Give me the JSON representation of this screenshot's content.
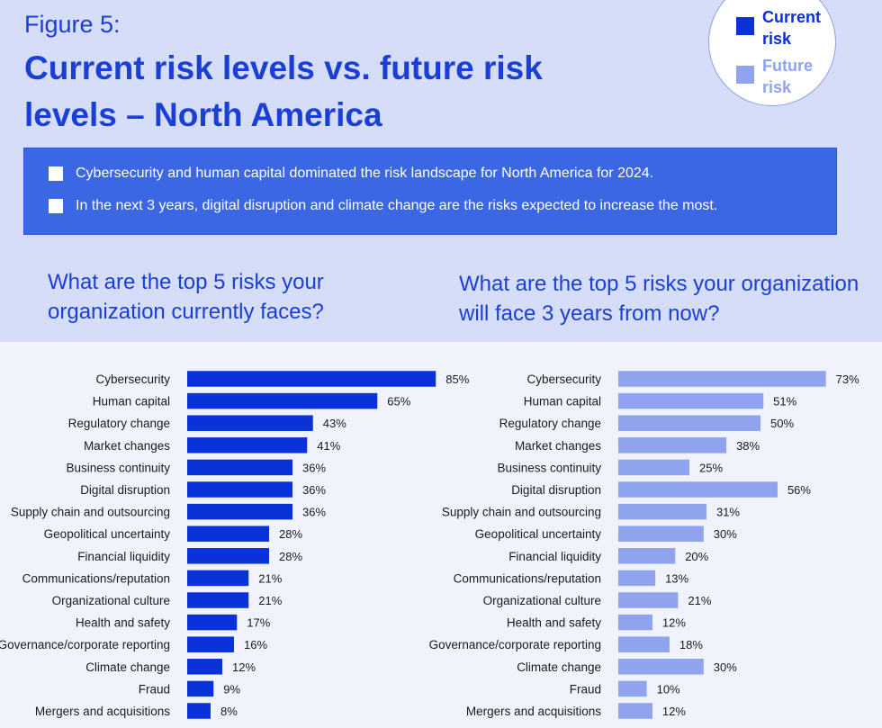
{
  "figure_label": "Figure 5:",
  "title": "Current risk levels vs. future risk levels – North America",
  "legend": {
    "current": "Current risk",
    "future": "Future risk"
  },
  "colors": {
    "current": "#0a32d9",
    "future": "#8fa3ee",
    "callout": "#3b67e4",
    "heading": "#1a3fd6"
  },
  "highlights": [
    "Cybersecurity and human capital dominated the risk landscape for North America for 2024.",
    "In the next 3 years, digital disruption and climate change are the risks expected to increase the most."
  ],
  "questions": {
    "current": "What are the top 5 risks your organization currently faces?",
    "future": "What are the top 5 risks your organization will face 3 years from now?"
  },
  "chart_data": [
    {
      "type": "bar",
      "orientation": "horizontal",
      "series": [
        {
          "name": "Current risk",
          "values": [
            85,
            65,
            43,
            41,
            36,
            36,
            36,
            28,
            28,
            21,
            21,
            17,
            16,
            12,
            9,
            8
          ]
        }
      ],
      "categories": [
        "Cybersecurity",
        "Human capital",
        "Regulatory change",
        "Market changes",
        "Business continuity",
        "Digital disruption",
        "Supply chain and outsourcing",
        "Geopolitical uncertainty",
        "Financial liquidity",
        "Communications/reputation",
        "Organizational culture",
        "Health and safety",
        "Governance/corporate reporting",
        "Climate change",
        "Fraud",
        "Mergers and acquisitions"
      ],
      "unit": "%",
      "xlim": [
        0,
        100
      ],
      "grid": false
    },
    {
      "type": "bar",
      "orientation": "horizontal",
      "series": [
        {
          "name": "Future risk",
          "values": [
            73,
            51,
            50,
            38,
            25,
            56,
            31,
            30,
            20,
            13,
            21,
            12,
            18,
            30,
            10,
            12
          ]
        }
      ],
      "categories": [
        "Cybersecurity",
        "Human capital",
        "Regulatory change",
        "Market changes",
        "Business continuity",
        "Digital disruption",
        "Supply chain and outsourcing",
        "Geopolitical uncertainty",
        "Financial liquidity",
        "Communications/reputation",
        "Organizational culture",
        "Health and safety",
        "Governance/corporate reporting",
        "Climate change",
        "Fraud",
        "Mergers and acquisitions"
      ],
      "unit": "%",
      "xlim": [
        0,
        100
      ],
      "grid": false
    }
  ]
}
